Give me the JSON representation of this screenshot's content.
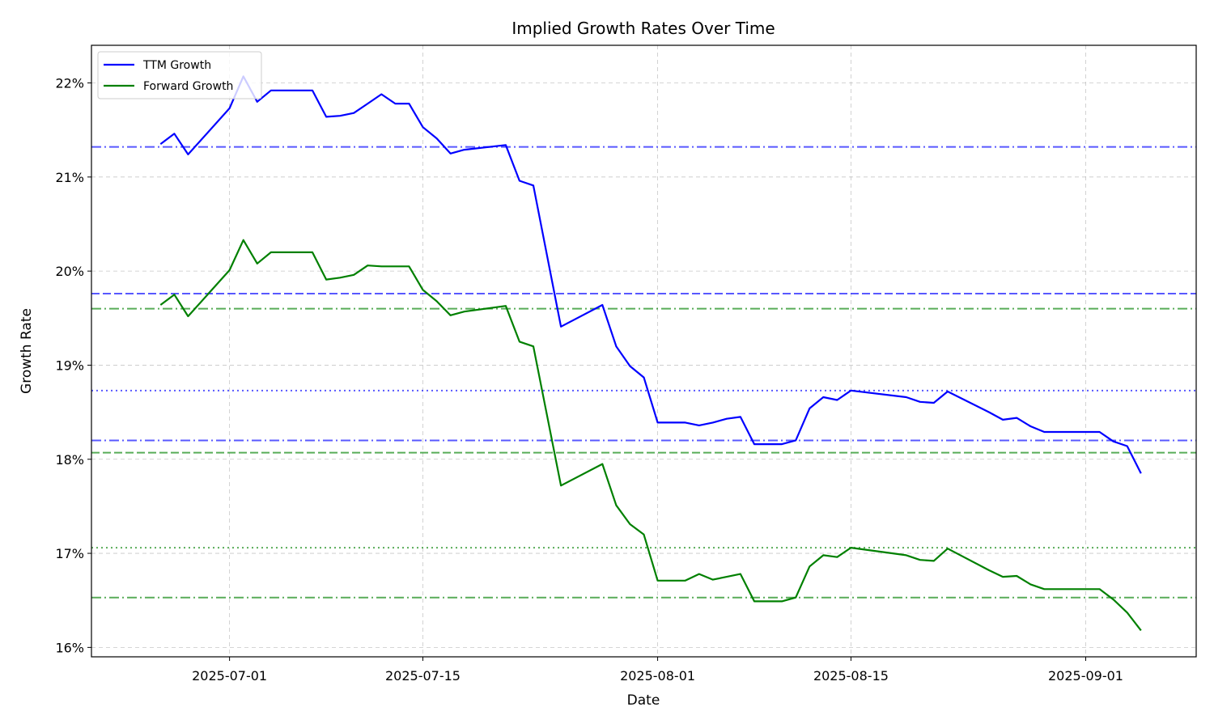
{
  "chart_data": {
    "type": "line",
    "title": "Implied Growth Rates Over Time",
    "xlabel": "Date",
    "ylabel": "Growth Rate",
    "xlim": [
      "2025-06-21",
      "2025-09-09"
    ],
    "ylim": [
      15.9,
      22.4
    ],
    "x_ticks": [
      "2025-07-01",
      "2025-07-15",
      "2025-08-01",
      "2025-08-15",
      "2025-09-01"
    ],
    "y_ticks": [
      16,
      17,
      18,
      19,
      20,
      21,
      22
    ],
    "y_tick_labels": [
      "16%",
      "17%",
      "18%",
      "19%",
      "20%",
      "21%",
      "22%"
    ],
    "grid": true,
    "legend_position": "top-left",
    "dates": [
      "2025-06-26",
      "2025-06-27",
      "2025-06-28",
      "2025-07-01",
      "2025-07-02",
      "2025-07-03",
      "2025-07-04",
      "2025-07-07",
      "2025-07-08",
      "2025-07-09",
      "2025-07-10",
      "2025-07-11",
      "2025-07-12",
      "2025-07-13",
      "2025-07-14",
      "2025-07-15",
      "2025-07-16",
      "2025-07-17",
      "2025-07-18",
      "2025-07-21",
      "2025-07-22",
      "2025-07-23",
      "2025-07-25",
      "2025-07-28",
      "2025-07-29",
      "2025-07-30",
      "2025-07-31",
      "2025-08-01",
      "2025-08-03",
      "2025-08-04",
      "2025-08-05",
      "2025-08-06",
      "2025-08-07",
      "2025-08-08",
      "2025-08-10",
      "2025-08-11",
      "2025-08-12",
      "2025-08-13",
      "2025-08-14",
      "2025-08-15",
      "2025-08-19",
      "2025-08-20",
      "2025-08-21",
      "2025-08-22",
      "2025-08-25",
      "2025-08-26",
      "2025-08-27",
      "2025-08-28",
      "2025-08-29",
      "2025-08-30",
      "2025-09-02",
      "2025-09-03",
      "2025-09-04",
      "2025-09-05"
    ],
    "series": [
      {
        "name": "TTM Growth",
        "color": "#0000ff",
        "values": [
          21.35,
          21.46,
          21.24,
          21.73,
          22.07,
          21.8,
          21.92,
          21.92,
          21.64,
          21.65,
          21.68,
          21.78,
          21.88,
          21.78,
          21.78,
          21.53,
          21.41,
          21.25,
          21.29,
          21.34,
          20.96,
          20.91,
          19.41,
          19.64,
          19.2,
          18.99,
          18.87,
          18.39,
          18.39,
          18.36,
          18.39,
          18.43,
          18.45,
          18.16,
          18.16,
          18.2,
          18.54,
          18.66,
          18.63,
          18.73,
          18.66,
          18.61,
          18.6,
          18.72,
          18.5,
          18.42,
          18.44,
          18.35,
          18.29,
          18.29,
          18.29,
          18.19,
          18.14,
          17.85
        ]
      },
      {
        "name": "Forward Growth",
        "color": "#008000",
        "values": [
          19.64,
          19.75,
          19.52,
          20.01,
          20.33,
          20.08,
          20.2,
          20.2,
          19.91,
          19.93,
          19.96,
          20.06,
          20.05,
          20.05,
          20.05,
          19.8,
          19.68,
          19.53,
          19.57,
          19.63,
          19.25,
          19.2,
          17.72,
          17.95,
          17.51,
          17.31,
          17.2,
          16.71,
          16.71,
          16.78,
          16.72,
          16.75,
          16.78,
          16.49,
          16.49,
          16.53,
          16.86,
          16.98,
          16.96,
          17.06,
          16.98,
          16.93,
          16.92,
          17.05,
          16.82,
          16.75,
          16.76,
          16.67,
          16.62,
          16.62,
          16.62,
          16.51,
          16.37,
          16.18
        ]
      }
    ],
    "reference_lines": [
      {
        "value": 21.32,
        "color": "#0000ff",
        "style": "dashdot"
      },
      {
        "value": 19.76,
        "color": "#0000ff",
        "style": "dashed"
      },
      {
        "value": 18.73,
        "color": "#0000ff",
        "style": "dotted"
      },
      {
        "value": 18.2,
        "color": "#0000ff",
        "style": "dashdot"
      },
      {
        "value": 19.6,
        "color": "#008000",
        "style": "dashdot"
      },
      {
        "value": 18.07,
        "color": "#008000",
        "style": "dashed"
      },
      {
        "value": 17.06,
        "color": "#008000",
        "style": "dotted"
      },
      {
        "value": 16.53,
        "color": "#008000",
        "style": "dashdot"
      }
    ]
  }
}
